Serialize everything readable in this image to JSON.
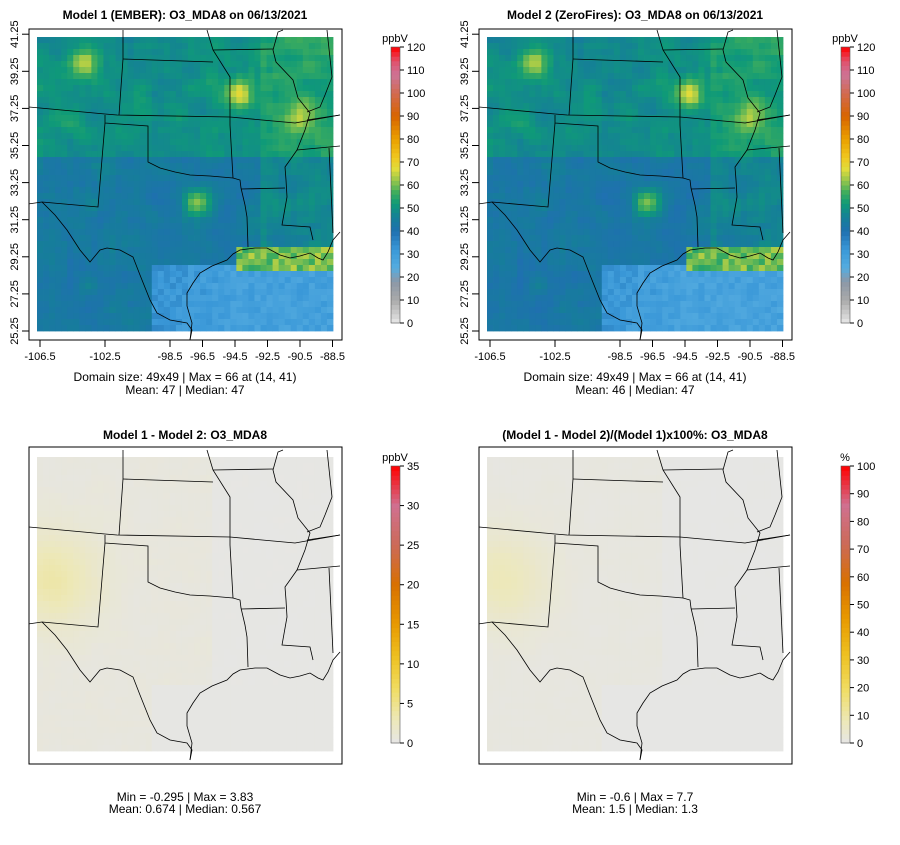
{
  "panels": [
    {
      "title": "Model 1 (EMBER): O3_MDA8 on 06/13/2021",
      "scale": "o3",
      "footer_line1": "Domain size: 49x49 | Max = 66 at (14, 41)",
      "footer_line2": "Mean: 47 |  Median: 47",
      "show_axes": true,
      "model": "m1"
    },
    {
      "title": "Model 2 (ZeroFires): O3_MDA8 on 06/13/2021",
      "scale": "o3",
      "footer_line1": "Domain size: 49x49 | Max = 66 at (14, 41)",
      "footer_line2": "Mean: 46 |  Median: 47",
      "show_axes": true,
      "model": "m2"
    },
    {
      "title": "Model 1 - Model 2: O3_MDA8",
      "scale": "diff",
      "footer_line1": "Min = -0.295 | Max = 3.83",
      "footer_line2": "Mean: 0.674 |  Median: 0.567",
      "show_axes": false,
      "model": "d"
    },
    {
      "title": "(Model 1 - Model 2)/(Model 1)x100%: O3_MDA8",
      "scale": "pct",
      "footer_line1": "Min = -0.6 | Max = 7.7",
      "footer_line2": "Mean: 1.5 |  Median: 1.3",
      "show_axes": false,
      "model": "p"
    }
  ],
  "axes": {
    "lon_ticks": [
      "-106.5",
      "-102.5",
      "-98.5",
      "-96.5",
      "-94.5",
      "-92.5",
      "-90.5",
      "-88.5"
    ],
    "lat_ticks": [
      "25.25",
      "27.25",
      "29.25",
      "31.25",
      "33.25",
      "35.25",
      "37.25",
      "39.25",
      "41.25"
    ]
  },
  "colorbars": {
    "o3": {
      "unit": "ppbV",
      "ticks": [
        "0",
        "10",
        "20",
        "30",
        "40",
        "50",
        "60",
        "70",
        "80",
        "90",
        "100",
        "110",
        "120"
      ],
      "max": 120,
      "stops": [
        [
          0,
          "#e8e8e8"
        ],
        [
          10,
          "#aaaaaa"
        ],
        [
          18,
          "#8c98a6"
        ],
        [
          24,
          "#55ace0"
        ],
        [
          32,
          "#3a98d8"
        ],
        [
          40,
          "#1f70b0"
        ],
        [
          46,
          "#157f98"
        ],
        [
          52,
          "#0f9a78"
        ],
        [
          57,
          "#40ad5c"
        ],
        [
          62,
          "#95c64c"
        ],
        [
          67,
          "#e0dc3c"
        ],
        [
          72,
          "#f0c820"
        ],
        [
          80,
          "#eaa000"
        ],
        [
          90,
          "#d86400"
        ],
        [
          100,
          "#d26a50"
        ],
        [
          108,
          "#cc7498"
        ],
        [
          114,
          "#e2506a"
        ],
        [
          120,
          "#ff0000"
        ]
      ]
    },
    "diff": {
      "unit": "ppbV",
      "ticks": [
        "0",
        "5",
        "10",
        "15",
        "20",
        "25",
        "30",
        "35"
      ],
      "max": 35,
      "stops": [
        [
          0,
          "#e6e6e6"
        ],
        [
          3,
          "#ede8b8"
        ],
        [
          7,
          "#f0dc60"
        ],
        [
          11,
          "#eec020"
        ],
        [
          15,
          "#e89a00"
        ],
        [
          20,
          "#d87000"
        ],
        [
          25,
          "#cc6a58"
        ],
        [
          30,
          "#d07090"
        ],
        [
          35,
          "#ff0000"
        ]
      ]
    },
    "pct": {
      "unit": "%",
      "ticks": [
        "0",
        "10",
        "20",
        "30",
        "40",
        "50",
        "60",
        "70",
        "80",
        "90",
        "100"
      ],
      "max": 100,
      "stops": [
        [
          0,
          "#e6e6e6"
        ],
        [
          8,
          "#ede8b8"
        ],
        [
          20,
          "#f0dc60"
        ],
        [
          32,
          "#eec020"
        ],
        [
          45,
          "#e89a00"
        ],
        [
          58,
          "#d87000"
        ],
        [
          72,
          "#cc6a58"
        ],
        [
          86,
          "#d07090"
        ],
        [
          100,
          "#ff0000"
        ]
      ]
    }
  }
}
